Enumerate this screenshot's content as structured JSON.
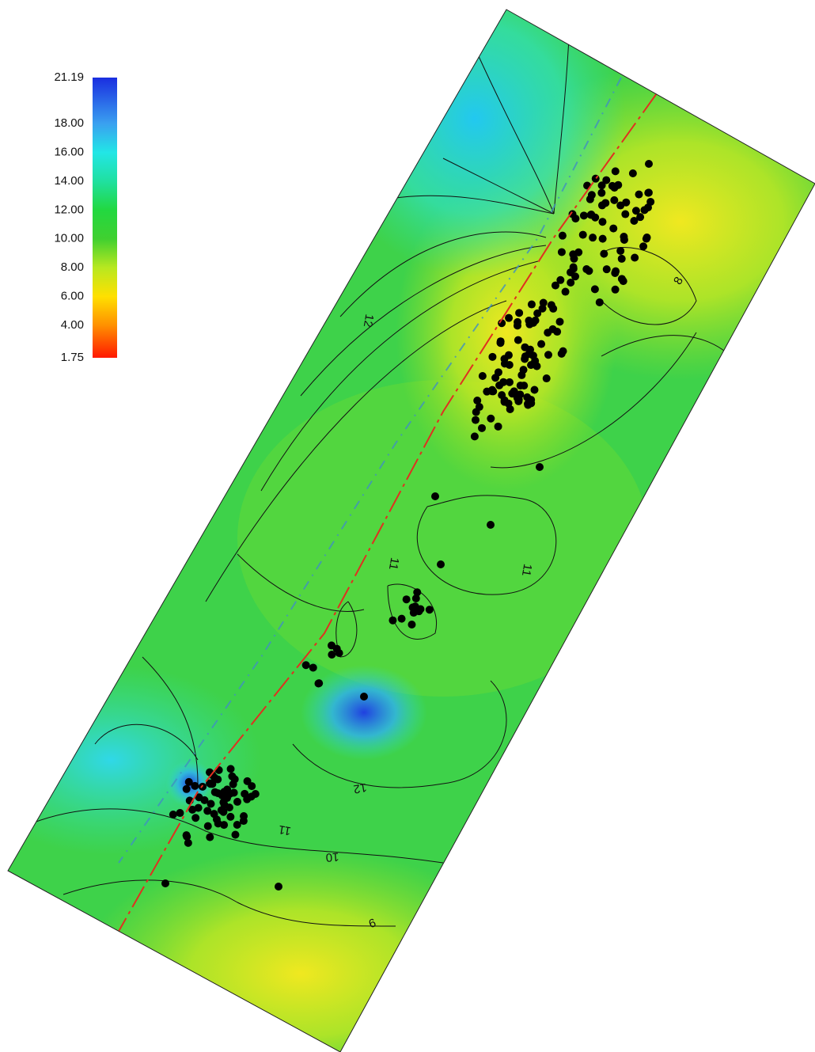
{
  "colorbar": {
    "range": [
      1.75,
      21.19
    ],
    "ticks": [
      21.19,
      {
        "value": 18,
        "label": "18.00"
      },
      {
        "value": 16,
        "label": "16.00"
      },
      {
        "value": 14,
        "label": "14.00"
      },
      {
        "value": 12,
        "label": "12.00"
      },
      {
        "value": 10,
        "label": "10.00"
      },
      {
        "value": 8,
        "label": "8.00"
      },
      {
        "value": 6,
        "label": "6.00"
      },
      {
        "value": 4,
        "label": "4.00"
      },
      1.75
    ],
    "colors": [
      "#1a2ee0",
      "#3aa0f0",
      "#22e6e6",
      "#20e0a0",
      "#22d840",
      "#40d030",
      "#b8e820",
      "#ffe000",
      "#ff9000",
      "#ff1800"
    ]
  },
  "contour_labels": [
    12,
    8,
    11,
    11,
    12,
    11,
    10,
    9
  ]
}
